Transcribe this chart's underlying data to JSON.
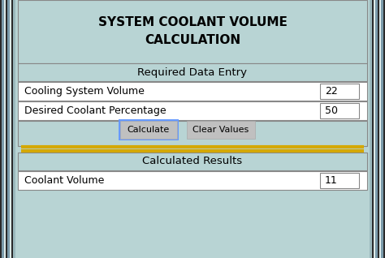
{
  "title_line1": "SYSTEM COOLANT VOLUME",
  "title_line2": "CALCULATION",
  "bg_color": "#b8d4d4",
  "white_color": "#ffffff",
  "gray_color": "#c0c0c0",
  "border_color": "#888888",
  "blue_border": "#6699ff",
  "gold_color": "#d4a800",
  "text_color": "#000000",
  "section1_label": "Required Data Entry",
  "row1_label": "Cooling System Volume",
  "row1_value": "22",
  "row2_label": "Desired Coolant Percentage",
  "row2_value": "50",
  "btn1_label": "Calculate",
  "btn2_label": "Clear Values",
  "section2_label": "Calculated Results",
  "row3_label": "Coolant Volume",
  "row3_value": "11",
  "stripe_dark": "#3a3a3a",
  "stripe_mid": "#7a9aa8",
  "stripe_light": "#c8dce0",
  "stripe_white": "#e8f0f0"
}
